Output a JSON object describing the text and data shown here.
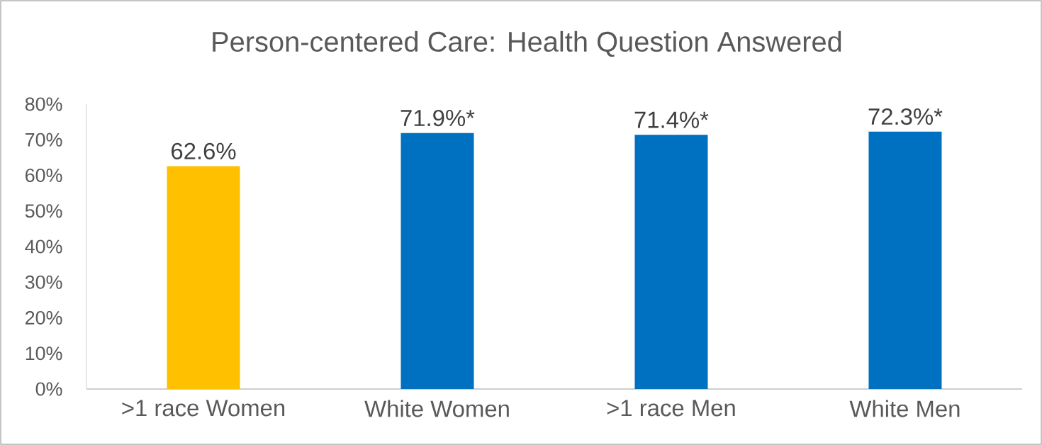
{
  "chart_data": {
    "type": "bar",
    "title": "Person-centered Care: Health Question Answered",
    "categories": [
      ">1 race Women",
      "White Women",
      ">1 race Men",
      "White Men"
    ],
    "values": [
      62.6,
      71.9,
      71.4,
      72.3
    ],
    "colors": [
      "#ffc000",
      "#0070c0",
      "#0070c0",
      "#0070c0"
    ],
    "value_labels": [
      "62.6%",
      "71.9%*",
      "71.4%*",
      "72.3%*"
    ],
    "ylim": [
      0,
      80
    ],
    "yticks": [
      {
        "value": 0,
        "label": "0%"
      },
      {
        "value": 10,
        "label": "10%"
      },
      {
        "value": 20,
        "label": "20%"
      },
      {
        "value": 30,
        "label": "30%"
      },
      {
        "value": 40,
        "label": "40%"
      },
      {
        "value": 50,
        "label": "50%"
      },
      {
        "value": 60,
        "label": "60%"
      },
      {
        "value": 70,
        "label": "70%"
      },
      {
        "value": 80,
        "label": "80%"
      }
    ]
  }
}
